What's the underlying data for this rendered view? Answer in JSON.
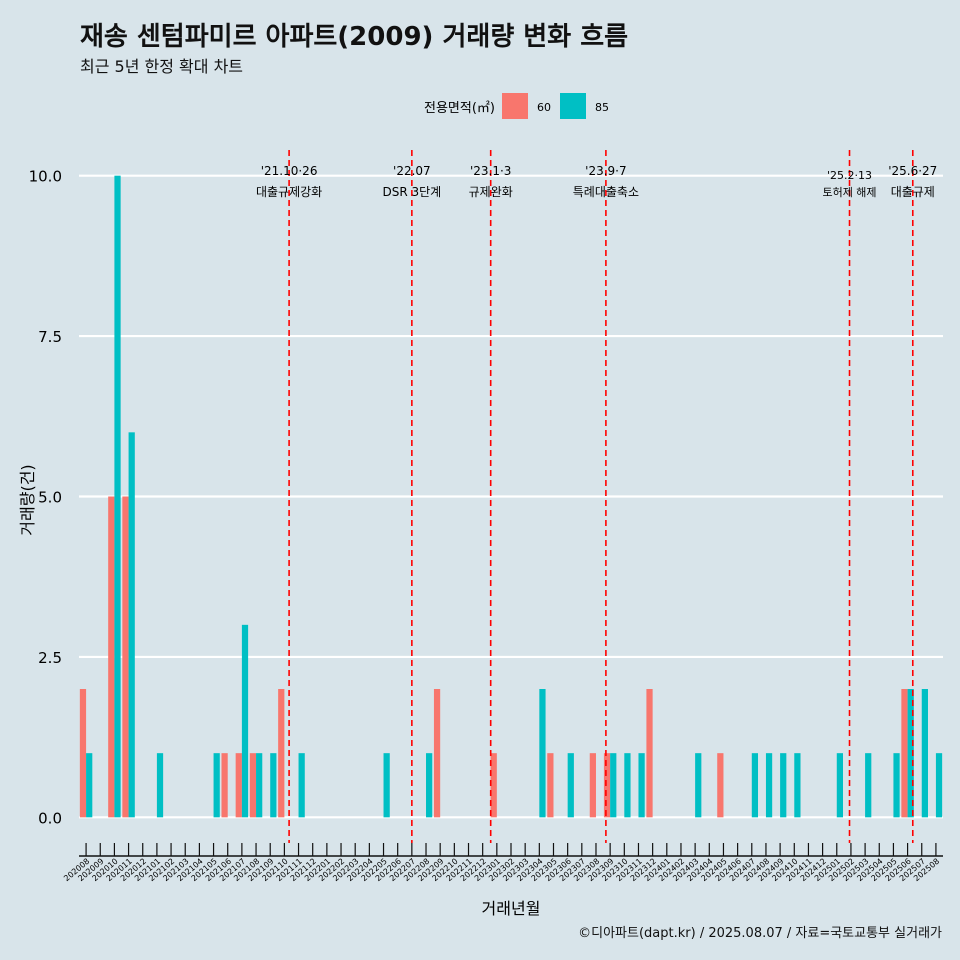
{
  "header": {
    "title": "재송 센텀파미르 아파트(2009) 거래량 변화 흐름",
    "subtitle": "최근 5년 한정 확대 차트"
  },
  "caption": "©디아파트(dapt.kr) / 2025.08.07 / 자료=국토교통부 실거래가",
  "legend": {
    "title": "전용면적(㎡)",
    "items": [
      {
        "label": "60",
        "color": "#F8766D"
      },
      {
        "label": "85",
        "color": "#00BFC4"
      }
    ]
  },
  "chart_data": {
    "type": "bar",
    "title": "재송 센텀파미르 아파트(2009) 거래량 변화 흐름",
    "xlabel": "거래년월",
    "ylabel": "거래량(건)",
    "ylim": [
      -0.4,
      10.4
    ],
    "yticks": [
      0.0,
      2.5,
      5.0,
      7.5,
      10.0
    ],
    "ytick_labels": [
      "0.0",
      "2.5",
      "5.0",
      "7.5",
      "10.0"
    ],
    "grid": true,
    "legend_position": "top",
    "categories": [
      "202008",
      "202009",
      "202010",
      "202011",
      "202012",
      "202101",
      "202102",
      "202103",
      "202104",
      "202105",
      "202106",
      "202107",
      "202108",
      "202109",
      "202110",
      "202111",
      "202112",
      "202201",
      "202202",
      "202203",
      "202204",
      "202205",
      "202206",
      "202207",
      "202208",
      "202209",
      "202210",
      "202211",
      "202212",
      "202301",
      "202302",
      "202303",
      "202304",
      "202305",
      "202306",
      "202307",
      "202308",
      "202309",
      "202310",
      "202311",
      "202312",
      "202401",
      "202402",
      "202403",
      "202404",
      "202405",
      "202406",
      "202407",
      "202408",
      "202409",
      "202410",
      "202411",
      "202412",
      "202501",
      "202502",
      "202503",
      "202504",
      "202505",
      "202506",
      "202507",
      "202508"
    ],
    "series": [
      {
        "name": "60",
        "color": "#F8766D",
        "values": [
          2,
          0,
          5,
          5,
          0,
          0,
          0,
          0,
          0,
          0,
          1,
          1,
          1,
          0,
          2,
          0,
          0,
          0,
          0,
          0,
          0,
          0,
          0,
          0,
          0,
          2,
          0,
          0,
          0,
          1,
          0,
          0,
          0,
          1,
          0,
          0,
          1,
          1,
          0,
          0,
          2,
          0,
          0,
          0,
          0,
          1,
          0,
          0,
          0,
          0,
          0,
          0,
          0,
          0,
          0,
          0,
          0,
          0,
          2,
          0,
          0
        ]
      },
      {
        "name": "85",
        "color": "#00BFC4",
        "values": [
          1,
          0,
          10,
          6,
          0,
          1,
          0,
          0,
          0,
          1,
          0,
          3,
          1,
          1,
          0,
          1,
          0,
          0,
          0,
          0,
          0,
          1,
          0,
          0,
          1,
          0,
          0,
          0,
          0,
          0,
          0,
          0,
          2,
          0,
          1,
          0,
          0,
          1,
          1,
          1,
          0,
          0,
          0,
          1,
          0,
          0,
          0,
          1,
          1,
          1,
          1,
          0,
          0,
          1,
          0,
          1,
          0,
          1,
          2,
          2,
          1
        ]
      }
    ],
    "annotations": [
      {
        "date": "2021-10-26",
        "label_top": "'21.10·26",
        "label_bottom": "대출규제강화"
      },
      {
        "date": "2022-07",
        "label_top": "'22.07",
        "label_bottom": "DSR 3단계"
      },
      {
        "date": "2023-01-03",
        "label_top": "'23.1·3",
        "label_bottom": "규제완화"
      },
      {
        "date": "2023-09-07",
        "label_top": "'23.9·7",
        "label_bottom": "특례대출축소"
      },
      {
        "date": "2025-02-13",
        "label_top": "'25.2·13",
        "label_bottom": "토허제 해제"
      },
      {
        "date": "2025-06-27",
        "label_top": "'25.6·27",
        "label_bottom": "대출규제"
      }
    ]
  }
}
